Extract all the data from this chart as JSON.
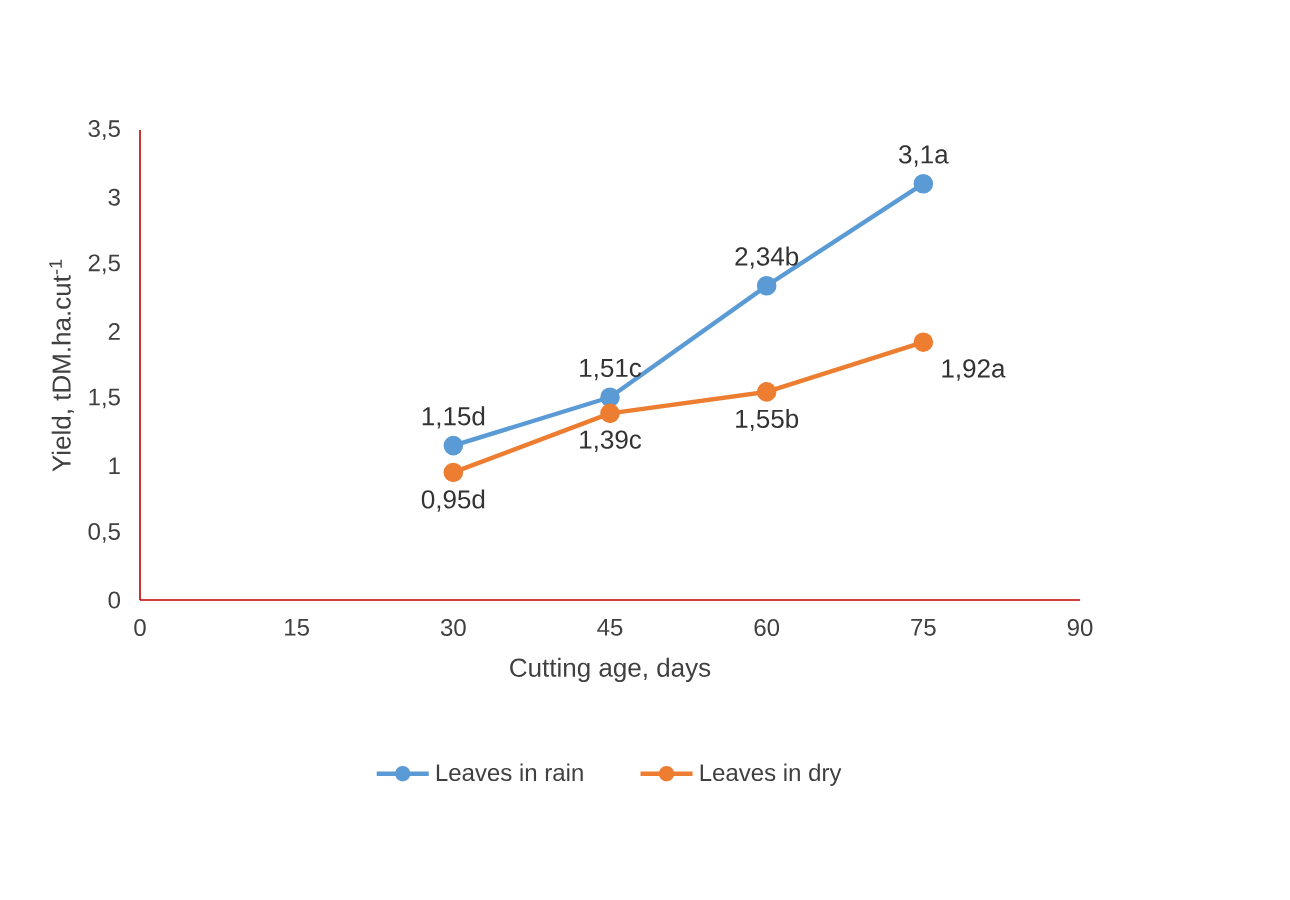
{
  "chart_data": {
    "type": "line",
    "xlabel": "Cutting age, days",
    "ylabel": "Yield, tDM.ha.cut$^{-1}$",
    "x": [
      30,
      45,
      60,
      75
    ],
    "series": [
      {
        "name": "Leaves in rain",
        "color": "#5b9bd5",
        "values": [
          1.15,
          1.51,
          2.34,
          3.1
        ],
        "value_labels": [
          "1,15d",
          "1,51c",
          "2,34b",
          "3,1a"
        ]
      },
      {
        "name": "Leaves in dry",
        "color": "#ed7d31",
        "values": [
          0.95,
          1.39,
          1.55,
          1.92
        ],
        "value_labels": [
          "0,95d",
          "1,39c",
          "1,55b",
          "1,92a"
        ]
      }
    ],
    "xlim": [
      0,
      90
    ],
    "xticks": [
      0,
      15,
      30,
      45,
      60,
      75,
      90
    ],
    "ylim": [
      0,
      3.5
    ],
    "yticks": [
      0,
      {
        "value": 0.5,
        "label": "0,5"
      },
      1,
      {
        "value": 1.5,
        "label": "1,5"
      },
      2,
      {
        "value": 2.5,
        "label": "2,5"
      },
      3,
      {
        "value": 3.5,
        "label": "3,5"
      }
    ],
    "grid": false,
    "legend": "bottom",
    "marker": "circle",
    "line_style": "solid"
  }
}
